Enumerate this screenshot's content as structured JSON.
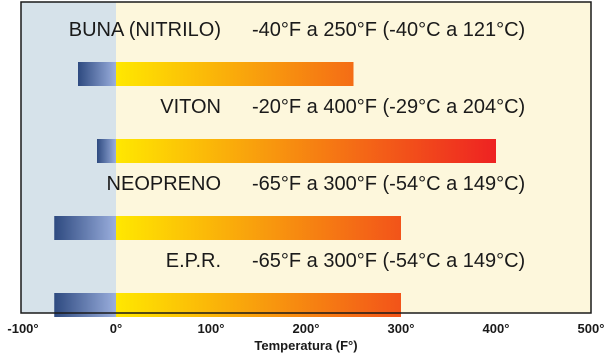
{
  "chart_data": {
    "type": "bar",
    "orientation": "horizontal-range",
    "xlabel": "Temperatura (F°)",
    "xlim": [
      -100,
      500
    ],
    "ticks": [
      {
        "value": -100,
        "label": "-100°"
      },
      {
        "value": 0,
        "label": "0°"
      },
      {
        "value": 100,
        "label": "100°"
      },
      {
        "value": 200,
        "label": "200°"
      },
      {
        "value": 300,
        "label": "300°"
      },
      {
        "value": 400,
        "label": "400°"
      },
      {
        "value": 500,
        "label": "500°"
      }
    ],
    "categories": [
      "BUNA (NITRILO)",
      "VITON",
      "NEOPRENO",
      "E.P.R."
    ],
    "series": [
      {
        "min": -40,
        "max": 250,
        "range_text": "-40°F a 250°F (-40°C a 121°C)"
      },
      {
        "min": -20,
        "max": 400,
        "range_text": "-20°F a 400°F (-29°C a 204°C)"
      },
      {
        "min": -65,
        "max": 300,
        "range_text": "-65°F a 300°F (-54°C a 149°C)"
      },
      {
        "min": -65,
        "max": 300,
        "range_text": "-65°F a 300°F (-54°C a 149°C)"
      }
    ],
    "colors": {
      "below_zero_background": "#d6e2ea",
      "above_zero_background": "#fdf7dc",
      "cold_start": "#2e4a80",
      "cold_end": "#9aaedd",
      "warm_start": "#ffe800",
      "warm_end": "#ee2222",
      "border": "#1a1a1a"
    }
  }
}
